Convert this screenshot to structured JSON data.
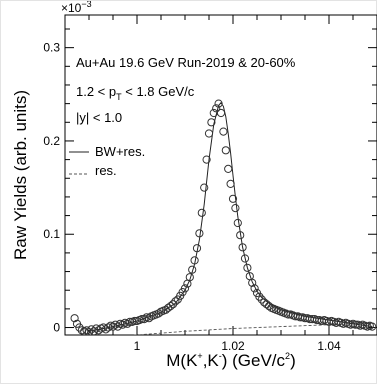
{
  "chart_data": {
    "type": "scatter",
    "xlabel": {
      "base": "M(K",
      "sup1": "+",
      "mid": ",K",
      "sup2": "-",
      "mid2": ")  (GeV/c",
      "sup3": "2",
      "end": ")"
    },
    "ylabel": "Raw Yields (arb. units)",
    "y_multiplier": {
      "base": "×10",
      "exp": "−3"
    },
    "xlim": [
      0.985,
      1.05
    ],
    "ylim": [
      -0.008,
      0.335
    ],
    "x_tick_labels": [
      {
        "value": 1.0,
        "label": "1"
      },
      {
        "value": 1.02,
        "label": "1.02"
      },
      {
        "value": 1.04,
        "label": "1.04"
      }
    ],
    "x_minor_step": 0.005,
    "y_tick_labels": [
      {
        "value": 0.0,
        "label": "0"
      },
      {
        "value": 0.1,
        "label": "0.1"
      },
      {
        "value": 0.2,
        "label": "0.2"
      },
      {
        "value": 0.3,
        "label": "0.3"
      }
    ],
    "y_minor_step": 0.02,
    "annotations": {
      "line1": "Au+Au 19.6 GeV Run-2019 & 20-60%",
      "line2": {
        "pre": "1.2 < p",
        "sub": "T",
        "post": " < 1.8 GeV/c"
      },
      "line3": "|y| < 1.0"
    },
    "legend": {
      "placement": "left",
      "entries": [
        {
          "name": "BW+res.",
          "style": "solid"
        },
        {
          "name": "res.",
          "style": "dashed"
        }
      ]
    },
    "series": [
      {
        "name": "data",
        "marker": "open-circle",
        "x": [
          0.987,
          0.9875,
          0.988,
          0.9885,
          0.989,
          0.9895,
          0.99,
          0.9905,
          0.991,
          0.9915,
          0.992,
          0.9925,
          0.993,
          0.9935,
          0.994,
          0.9945,
          0.995,
          0.9955,
          0.996,
          0.9965,
          0.997,
          0.9975,
          0.998,
          0.9985,
          0.999,
          0.9995,
          1.0,
          1.0005,
          1.001,
          1.0015,
          1.002,
          1.0025,
          1.003,
          1.0035,
          1.004,
          1.0045,
          1.005,
          1.0055,
          1.006,
          1.0065,
          1.007,
          1.0075,
          1.008,
          1.0085,
          1.009,
          1.0095,
          1.01,
          1.0105,
          1.011,
          1.0115,
          1.012,
          1.0125,
          1.013,
          1.0135,
          1.014,
          1.0145,
          1.015,
          1.0155,
          1.016,
          1.0165,
          1.017,
          1.0175,
          1.018,
          1.0185,
          1.019,
          1.0195,
          1.02,
          1.0205,
          1.021,
          1.0215,
          1.022,
          1.0225,
          1.023,
          1.0235,
          1.024,
          1.0245,
          1.025,
          1.0255,
          1.026,
          1.0265,
          1.027,
          1.0275,
          1.028,
          1.0285,
          1.029,
          1.0295,
          1.03,
          1.0305,
          1.031,
          1.0315,
          1.032,
          1.0325,
          1.033,
          1.0335,
          1.034,
          1.0345,
          1.035,
          1.0355,
          1.036,
          1.0365,
          1.037,
          1.0375,
          1.038,
          1.0385,
          1.039,
          1.0395,
          1.04,
          1.0405,
          1.041,
          1.0415,
          1.042,
          1.0425,
          1.043,
          1.0435,
          1.044,
          1.0445,
          1.045,
          1.0455,
          1.046,
          1.0465,
          1.047,
          1.0475,
          1.048,
          1.0485,
          1.049
        ],
        "y": [
          0.01,
          0.004,
          0.0,
          -0.003,
          -0.004,
          -0.003,
          -0.005,
          -0.002,
          -0.004,
          -0.001,
          -0.003,
          -0.001,
          0.0,
          -0.002,
          0.0,
          0.002,
          0.001,
          0.003,
          0.001,
          0.004,
          0.003,
          0.005,
          0.004,
          0.006,
          0.006,
          0.007,
          0.007,
          0.008,
          0.009,
          0.009,
          0.011,
          0.01,
          0.012,
          0.013,
          0.014,
          0.015,
          0.017,
          0.018,
          0.019,
          0.021,
          0.023,
          0.025,
          0.028,
          0.03,
          0.034,
          0.038,
          0.042,
          0.047,
          0.054,
          0.062,
          0.072,
          0.085,
          0.101,
          0.123,
          0.15,
          0.18,
          0.208,
          0.22,
          0.23,
          0.235,
          0.24,
          0.23,
          0.21,
          0.19,
          0.17,
          0.154,
          0.138,
          0.128,
          0.112,
          0.099,
          0.086,
          0.074,
          0.064,
          0.055,
          0.048,
          0.042,
          0.037,
          0.033,
          0.03,
          0.027,
          0.025,
          0.023,
          0.021,
          0.02,
          0.019,
          0.018,
          0.017,
          0.016,
          0.015,
          0.014,
          0.014,
          0.013,
          0.012,
          0.012,
          0.011,
          0.011,
          0.01,
          0.01,
          0.009,
          0.009,
          0.009,
          0.008,
          0.008,
          0.007,
          0.008,
          0.007,
          0.006,
          0.007,
          0.006,
          0.005,
          0.006,
          0.005,
          0.004,
          0.005,
          0.004,
          0.003,
          0.004,
          0.003,
          0.003,
          0.002,
          0.003,
          0.002,
          0.001,
          0.002,
          0.001
        ]
      },
      {
        "name": "BW+res.",
        "style": "solid",
        "x": [
          0.99,
          0.995,
          1.0,
          1.005,
          1.008,
          1.01,
          1.011,
          1.012,
          1.013,
          1.014,
          1.015,
          1.016,
          1.017,
          1.0175,
          1.018,
          1.0185,
          1.019,
          1.0195,
          1.02,
          1.0205,
          1.021,
          1.022,
          1.023,
          1.024,
          1.025,
          1.026,
          1.028,
          1.03,
          1.035,
          1.04,
          1.045,
          1.049
        ],
        "y": [
          -0.004,
          0.001,
          0.007,
          0.016,
          0.026,
          0.04,
          0.051,
          0.068,
          0.094,
          0.132,
          0.18,
          0.218,
          0.238,
          0.241,
          0.237,
          0.226,
          0.208,
          0.187,
          0.163,
          0.14,
          0.119,
          0.086,
          0.064,
          0.049,
          0.039,
          0.032,
          0.024,
          0.019,
          0.012,
          0.008,
          0.004,
          0.001
        ]
      },
      {
        "name": "res.",
        "style": "dashed",
        "x": [
          0.99,
          1.0,
          1.01,
          1.02,
          1.03,
          1.04,
          1.049
        ],
        "y": [
          -0.012,
          -0.008,
          -0.004,
          -0.001,
          0.001,
          0.003,
          0.005
        ]
      }
    ]
  }
}
